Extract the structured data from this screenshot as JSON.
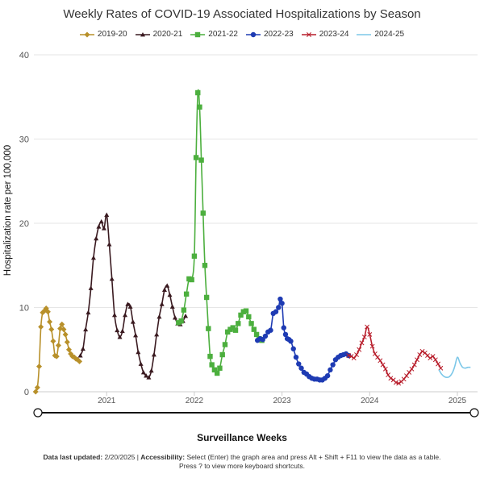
{
  "chart_data": {
    "type": "line",
    "title": "Weekly Rates of COVID-19 Associated Hospitalizations by Season",
    "xlabel": "Surveillance Weeks",
    "ylabel": "Hospitalization rate per 100,000",
    "x_range": [
      2020.17,
      2025.23
    ],
    "ylim": [
      0,
      40
    ],
    "y_ticks": [
      0,
      10,
      20,
      30,
      40
    ],
    "x_ticks": [
      {
        "label": "2021",
        "value": 2021.0
      },
      {
        "label": "2022",
        "value": 2022.0
      },
      {
        "label": "2023",
        "value": 2023.0
      },
      {
        "label": "2024",
        "value": 2024.0
      },
      {
        "label": "2025",
        "value": 2025.0
      }
    ],
    "grid": "horizontal",
    "legend_position": "top-center",
    "series": [
      {
        "name": "2019-20",
        "color": "#b8902a",
        "marker": "diamond",
        "x": [
          2020.19,
          2020.21,
          2020.23,
          2020.25,
          2020.27,
          2020.29,
          2020.31,
          2020.33,
          2020.35,
          2020.37,
          2020.39,
          2020.41,
          2020.43,
          2020.45,
          2020.47,
          2020.49,
          2020.51,
          2020.53,
          2020.55,
          2020.57,
          2020.59,
          2020.61,
          2020.63,
          2020.65,
          2020.67,
          2020.69
        ],
        "y": [
          0,
          0.5,
          3,
          7.7,
          9.4,
          9.6,
          9.9,
          9.5,
          8.3,
          7.4,
          6,
          4.3,
          4.2,
          5.5,
          7.5,
          8,
          7.4,
          6.8,
          5.9,
          5,
          4.5,
          4.2,
          4.1,
          3.9,
          3.8,
          3.6
        ]
      },
      {
        "name": "2020-21",
        "color": "#3a1a20",
        "marker": "triangle",
        "x": [
          2020.7,
          2020.73,
          2020.76,
          2020.79,
          2020.82,
          2020.85,
          2020.88,
          2020.91,
          2020.94,
          2020.97,
          2021.0,
          2021.03,
          2021.06,
          2021.09,
          2021.12,
          2021.15,
          2021.18,
          2021.21,
          2021.24,
          2021.27,
          2021.3,
          2021.33,
          2021.36,
          2021.39,
          2021.42,
          2021.45,
          2021.48,
          2021.51,
          2021.54,
          2021.57,
          2021.6,
          2021.63,
          2021.66,
          2021.69,
          2021.72,
          2021.75,
          2021.78,
          2021.81,
          2021.84,
          2021.87,
          2021.9
        ],
        "y": [
          4.3,
          5.1,
          7.4,
          9.4,
          12.3,
          15.9,
          18.2,
          19.6,
          20.2,
          19.4,
          21,
          17.5,
          13.4,
          9.1,
          7.3,
          6.5,
          7.2,
          9.1,
          10.4,
          10.1,
          8.3,
          6.7,
          4.7,
          3.3,
          2.3,
          1.9,
          1.7,
          2.5,
          4.4,
          6.8,
          8.9,
          10.4,
          12.1,
          12.6,
          11.5,
          10.1,
          8.8,
          8.1,
          8.0,
          8.4,
          9.0
        ]
      },
      {
        "name": "2021-22",
        "color": "#4caf3e",
        "marker": "square",
        "x": [
          2021.82,
          2021.85,
          2021.88,
          2021.91,
          2021.94,
          2021.97,
          2022.0,
          2022.02,
          2022.04,
          2022.06,
          2022.08,
          2022.1,
          2022.12,
          2022.14,
          2022.16,
          2022.18,
          2022.2,
          2022.23,
          2022.26,
          2022.29,
          2022.32,
          2022.35,
          2022.38,
          2022.41,
          2022.44,
          2022.47,
          2022.5,
          2022.53,
          2022.56,
          2022.59,
          2022.62,
          2022.65,
          2022.68,
          2022.71,
          2022.74,
          2022.77
        ],
        "y": [
          8.2,
          8.4,
          9.7,
          11.6,
          13.4,
          13.3,
          16.1,
          27.8,
          35.5,
          33.8,
          27.5,
          21.2,
          15,
          11.2,
          7.5,
          4.2,
          3.2,
          2.6,
          2.2,
          2.8,
          4.4,
          5.6,
          7.1,
          7.4,
          7.6,
          7.3,
          8.1,
          9.1,
          9.5,
          9.6,
          8.9,
          8.1,
          7.4,
          6.8,
          6.3,
          6.1
        ]
      },
      {
        "name": "2022-23",
        "color": "#1e3bb3",
        "marker": "circle",
        "x": [
          2022.72,
          2022.75,
          2022.78,
          2022.81,
          2022.84,
          2022.87,
          2022.9,
          2022.93,
          2022.96,
          2022.98,
          2023.0,
          2023.02,
          2023.04,
          2023.06,
          2023.08,
          2023.1,
          2023.13,
          2023.16,
          2023.19,
          2023.22,
          2023.25,
          2023.28,
          2023.31,
          2023.34,
          2023.37,
          2023.4,
          2023.43,
          2023.46,
          2023.49,
          2023.52,
          2023.55,
          2023.58,
          2023.61,
          2023.64,
          2023.67,
          2023.7,
          2023.73,
          2023.76
        ],
        "y": [
          6.1,
          6.3,
          6.2,
          6.6,
          7.1,
          7.3,
          9.3,
          9.5,
          10.0,
          11.0,
          10.5,
          7.6,
          6.8,
          6.3,
          6.2,
          6.0,
          5.1,
          4.1,
          3.3,
          2.8,
          2.3,
          2.1,
          1.8,
          1.6,
          1.5,
          1.5,
          1.4,
          1.4,
          1.6,
          1.9,
          2.6,
          3.2,
          3.8,
          4.1,
          4.3,
          4.4,
          4.5,
          4.3
        ]
      },
      {
        "name": "2023-24",
        "color": "#b81e2c",
        "marker": "cross",
        "x": [
          2023.76,
          2023.79,
          2023.82,
          2023.85,
          2023.88,
          2023.91,
          2023.94,
          2023.97,
          2024.0,
          2024.03,
          2024.06,
          2024.09,
          2024.12,
          2024.15,
          2024.18,
          2024.21,
          2024.24,
          2024.27,
          2024.3,
          2024.33,
          2024.36,
          2024.39,
          2024.42,
          2024.45,
          2024.48,
          2024.51,
          2024.54,
          2024.57,
          2024.6,
          2024.63,
          2024.66,
          2024.69,
          2024.72,
          2024.75,
          2024.78,
          2024.81
        ],
        "y": [
          4.3,
          4.2,
          4.0,
          4.4,
          5.0,
          5.8,
          6.5,
          7.7,
          6.8,
          5.4,
          4.5,
          4.1,
          3.7,
          3.2,
          2.7,
          2.0,
          1.6,
          1.4,
          1.1,
          1.0,
          1.2,
          1.5,
          1.9,
          2.3,
          2.7,
          3.2,
          3.8,
          4.4,
          4.8,
          4.6,
          4.3,
          4.0,
          4.2,
          3.8,
          3.3,
          2.8
        ]
      },
      {
        "name": "2024-25",
        "color": "#7cc7e8",
        "marker": "none",
        "x": [
          2024.79,
          2024.82,
          2024.85,
          2024.88,
          2024.91,
          2024.94,
          2024.97,
          2025.0,
          2025.03,
          2025.06,
          2025.09,
          2025.12,
          2025.15
        ],
        "y": [
          2.6,
          2.1,
          1.8,
          1.7,
          1.8,
          2.2,
          3.0,
          4.1,
          3.4,
          2.9,
          2.8,
          2.9,
          2.9
        ]
      }
    ]
  },
  "footer": {
    "updated_label": "Data last updated:",
    "updated_value": " 2/20/2025 | ",
    "accessibility_label": "Accessibility:",
    "accessibility_text": " Select (Enter) the graph area and press Alt + Shift + F11 to view the data as a table.",
    "line2": "Press ? to view more keyboard shortcuts."
  }
}
